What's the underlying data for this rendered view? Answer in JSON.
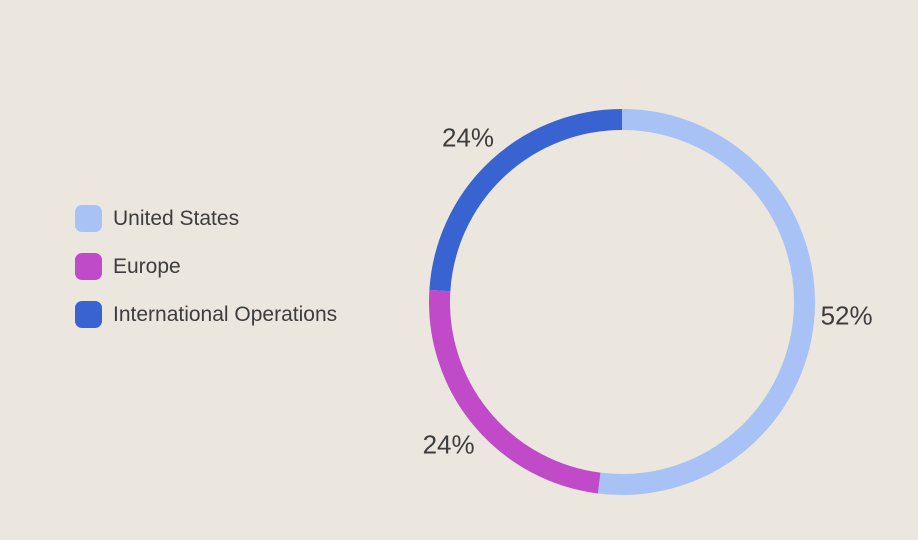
{
  "chart_data": {
    "type": "pie",
    "subtype": "donut",
    "title": "",
    "unit": "%",
    "direction": "clockwise",
    "start_angle": "top",
    "legend_position": "left",
    "background": "#ebe7df",
    "label_color": "#3d3d3d",
    "segments": [
      {
        "label": "United States",
        "value": 52,
        "value_label": "52%",
        "color": "#a8c2f6"
      },
      {
        "label": "Europe",
        "value": 24,
        "value_label": "24%",
        "color": "#c04ac8"
      },
      {
        "label": "International Operations",
        "value": 24,
        "value_label": "24%",
        "color": "#3a63d2"
      }
    ]
  }
}
